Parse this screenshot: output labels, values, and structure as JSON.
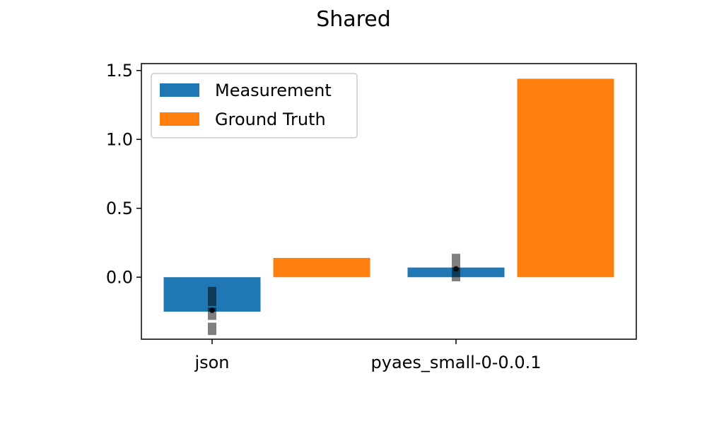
{
  "chart_data": {
    "type": "bar",
    "title": "Shared",
    "xlabel": "",
    "ylabel": "",
    "categories": [
      "json",
      "pyaes_small-0-0.0.1"
    ],
    "ylim": [
      -0.45,
      1.55
    ],
    "yticks": [
      0.0,
      0.5,
      1.0,
      1.5
    ],
    "ytick_labels": [
      "0.0",
      "0.5",
      "1.0",
      "1.5"
    ],
    "grid": false,
    "legend_position": "upper-left",
    "series": [
      {
        "name": "Measurement",
        "color": "#1f77b4",
        "values": [
          -0.25,
          0.07
        ],
        "error_bars": [
          {
            "segments": [
              [
                -0.42,
                -0.33
              ],
              [
                -0.31,
                -0.22
              ],
              [
                -0.21,
                -0.07
              ]
            ],
            "point": -0.24
          },
          {
            "segments": [
              [
                -0.03,
                0.04
              ],
              [
                0.04,
                0.09
              ],
              [
                0.09,
                0.17
              ]
            ],
            "point": 0.06
          }
        ]
      },
      {
        "name": "Ground Truth",
        "color": "#ff7f0e",
        "values": [
          0.14,
          1.44
        ]
      }
    ],
    "error_bar_color": "#000000"
  }
}
